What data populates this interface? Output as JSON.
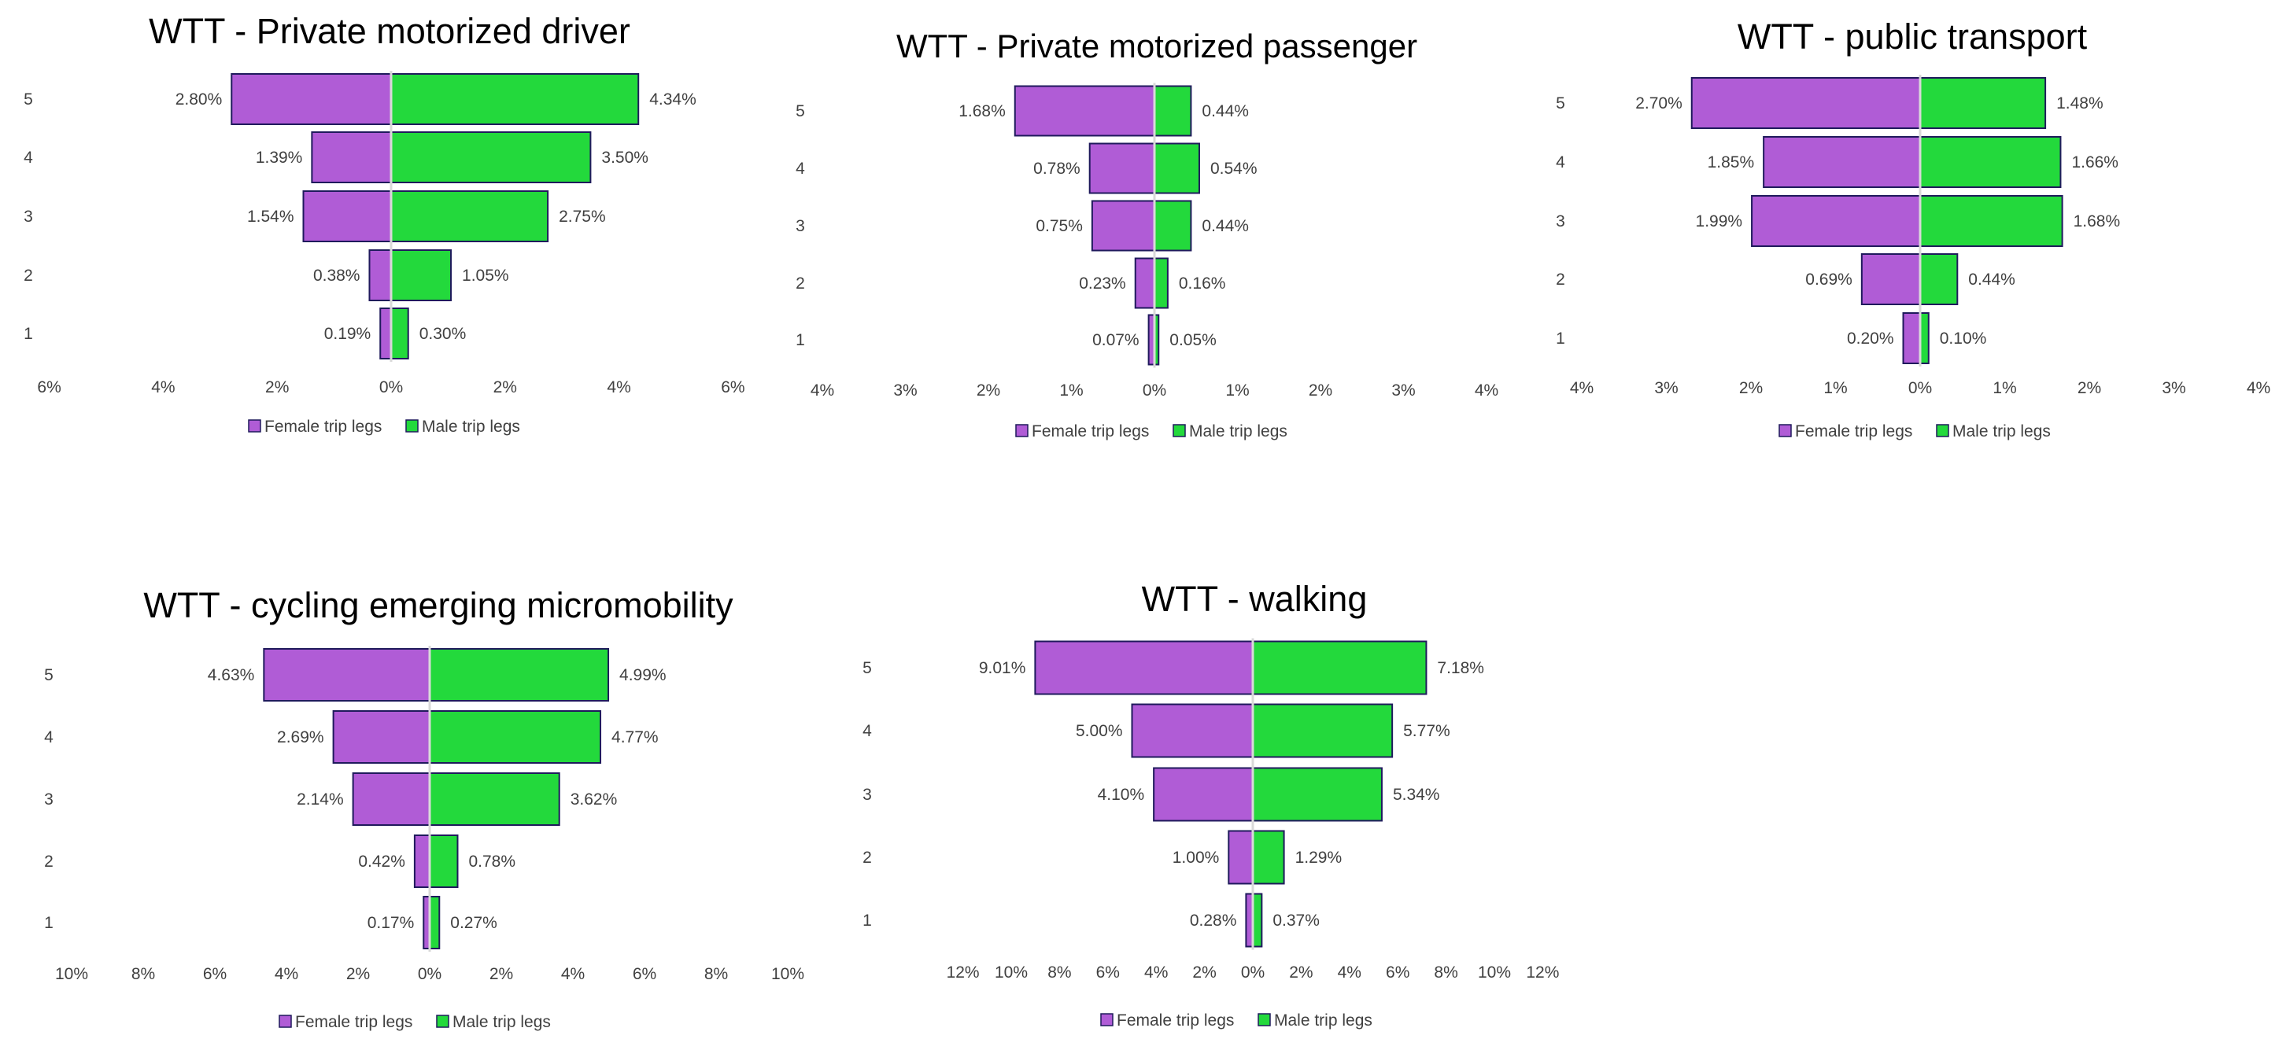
{
  "colors": {
    "female": "#b05cd6",
    "male": "#23d93c",
    "bar_border": "#1f1a5c",
    "text": "#404040",
    "center_line": "#d9d9d9"
  },
  "chart_data": [
    {
      "type": "bar",
      "orientation": "horizontal-diverging",
      "title": "WTT - Private motorized driver",
      "categories": [
        "5",
        "4",
        "3",
        "2",
        "1"
      ],
      "series": [
        {
          "name": "Female trip legs",
          "values": [
            2.8,
            1.39,
            1.54,
            0.38,
            0.19
          ],
          "labels": [
            "2.80%",
            "1.39%",
            "1.54%",
            "0.38%",
            "0.19%"
          ]
        },
        {
          "name": "Male trip legs",
          "values": [
            4.34,
            3.5,
            2.75,
            1.05,
            0.3
          ],
          "labels": [
            "4.34%",
            "3.50%",
            "2.75%",
            "1.05%",
            "0.30%"
          ]
        }
      ],
      "xlim": [
        -6,
        6
      ],
      "xticks": [
        "6%",
        "4%",
        "2%",
        "0%",
        "2%",
        "4%",
        "6%"
      ],
      "legend": [
        "Female trip legs",
        "Male trip legs"
      ],
      "legend_position": "bottom"
    },
    {
      "type": "bar",
      "orientation": "horizontal-diverging",
      "title": "WTT - Private motorized passenger",
      "categories": [
        "5",
        "4",
        "3",
        "2",
        "1"
      ],
      "series": [
        {
          "name": "Female trip legs",
          "values": [
            1.68,
            0.78,
            0.75,
            0.23,
            0.07
          ],
          "labels": [
            "1.68%",
            "0.78%",
            "0.75%",
            "0.23%",
            "0.07%"
          ]
        },
        {
          "name": "Male trip legs",
          "values": [
            0.44,
            0.54,
            0.44,
            0.16,
            0.05
          ],
          "labels": [
            "0.44%",
            "0.54%",
            "0.44%",
            "0.16%",
            "0.05%"
          ]
        }
      ],
      "xlim": [
        -4,
        4
      ],
      "xticks": [
        "4%",
        "3%",
        "2%",
        "1%",
        "0%",
        "1%",
        "2%",
        "3%",
        "4%"
      ],
      "legend": [
        "Female trip legs",
        "Male trip legs"
      ],
      "legend_position": "bottom"
    },
    {
      "type": "bar",
      "orientation": "horizontal-diverging",
      "title": "WTT - public transport",
      "categories": [
        "5",
        "4",
        "3",
        "2",
        "1"
      ],
      "series": [
        {
          "name": "Female trip legs",
          "values": [
            2.7,
            1.85,
            1.99,
            0.69,
            0.2
          ],
          "labels": [
            "2.70%",
            "1.85%",
            "1.99%",
            "0.69%",
            "0.20%"
          ]
        },
        {
          "name": "Male trip legs",
          "values": [
            1.48,
            1.66,
            1.68,
            0.44,
            0.1
          ],
          "labels": [
            "1.48%",
            "1.66%",
            "1.68%",
            "0.44%",
            "0.10%"
          ]
        }
      ],
      "xlim": [
        -4,
        4
      ],
      "xticks": [
        "4%",
        "3%",
        "2%",
        "1%",
        "0%",
        "1%",
        "2%",
        "3%",
        "4%"
      ],
      "legend": [
        "Female trip legs",
        "Male trip legs"
      ],
      "legend_position": "bottom"
    },
    {
      "type": "bar",
      "orientation": "horizontal-diverging",
      "title": "WTT - cycling emerging micromobility",
      "categories": [
        "5",
        "4",
        "3",
        "2",
        "1"
      ],
      "series": [
        {
          "name": "Female trip legs",
          "values": [
            4.63,
            2.69,
            2.14,
            0.42,
            0.17
          ],
          "labels": [
            "4.63%",
            "2.69%",
            "2.14%",
            "0.42%",
            "0.17%"
          ]
        },
        {
          "name": "Male trip legs",
          "values": [
            4.99,
            4.77,
            3.62,
            0.78,
            0.27
          ],
          "labels": [
            "4.99%",
            "4.77%",
            "3.62%",
            "0.78%",
            "0.27%"
          ]
        }
      ],
      "xlim": [
        -10,
        10
      ],
      "xticks": [
        "10%",
        "8%",
        "6%",
        "4%",
        "2%",
        "0%",
        "2%",
        "4%",
        "6%",
        "8%",
        "10%"
      ],
      "legend": [
        "Female trip legs",
        "Male trip legs"
      ],
      "legend_position": "bottom"
    },
    {
      "type": "bar",
      "orientation": "horizontal-diverging",
      "title": "WTT - walking",
      "categories": [
        "5",
        "4",
        "3",
        "2",
        "1"
      ],
      "series": [
        {
          "name": "Female trip legs",
          "values": [
            9.01,
            5.0,
            4.1,
            1.0,
            0.28
          ],
          "labels": [
            "9.01%",
            "5.00%",
            "4.10%",
            "1.00%",
            "0.28%"
          ]
        },
        {
          "name": "Male trip legs",
          "values": [
            7.18,
            5.77,
            5.34,
            1.29,
            0.37
          ],
          "labels": [
            "7.18%",
            "5.77%",
            "5.34%",
            "1.29%",
            "0.37%"
          ]
        }
      ],
      "xlim": [
        -12,
        12
      ],
      "xticks": [
        "12%",
        "10%",
        "8%",
        "6%",
        "4%",
        "2%",
        "0%",
        "2%",
        "4%",
        "6%",
        "8%",
        "10%",
        "12%"
      ],
      "legend": [
        "Female trip legs",
        "Male trip legs"
      ],
      "legend_position": "bottom"
    }
  ]
}
